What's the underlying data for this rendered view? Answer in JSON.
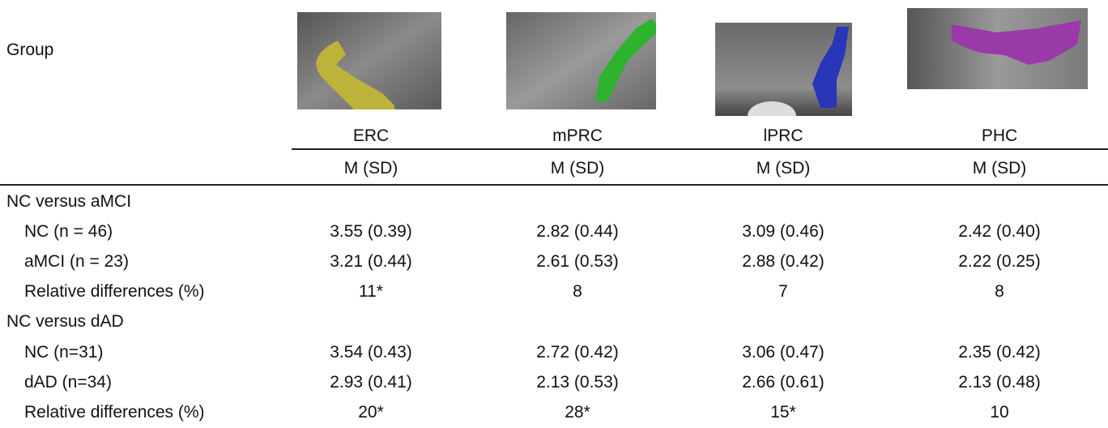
{
  "header": {
    "group": "Group"
  },
  "columns": [
    {
      "label": "ERC",
      "stat": "M (SD)"
    },
    {
      "label": "mPRC",
      "stat": "M (SD)"
    },
    {
      "label": "lPRC",
      "stat": "M (SD)"
    },
    {
      "label": "PHC",
      "stat": "M (SD)"
    }
  ],
  "sections": [
    {
      "title": "NC versus aMCI",
      "rows": [
        {
          "label": "NC (n = 46)",
          "values": [
            "3.55 (0.39)",
            "2.82 (0.44)",
            "3.09 (0.46)",
            "2.42 (0.40)"
          ]
        },
        {
          "label": "aMCI (n = 23)",
          "values": [
            "3.21 (0.44)",
            "2.61 (0.53)",
            "2.88 (0.42)",
            "2.22 (0.25)"
          ]
        },
        {
          "label": "Relative differences (%)",
          "values": [
            "11*",
            "8",
            "7",
            "8"
          ]
        }
      ]
    },
    {
      "title": "NC versus dAD",
      "rows": [
        {
          "label": "NC (n=31)",
          "values": [
            "3.54 (0.43)",
            "2.72 (0.42)",
            "3.06 (0.47)",
            "2.35 (0.42)"
          ]
        },
        {
          "label": "dAD (n=34)",
          "values": [
            "2.93 (0.41)",
            "2.13 (0.53)",
            "2.66 (0.61)",
            "2.13 (0.48)"
          ]
        },
        {
          "label": "Relative differences (%)",
          "values": [
            "20*",
            "28*",
            "15*",
            "10"
          ]
        }
      ]
    }
  ]
}
